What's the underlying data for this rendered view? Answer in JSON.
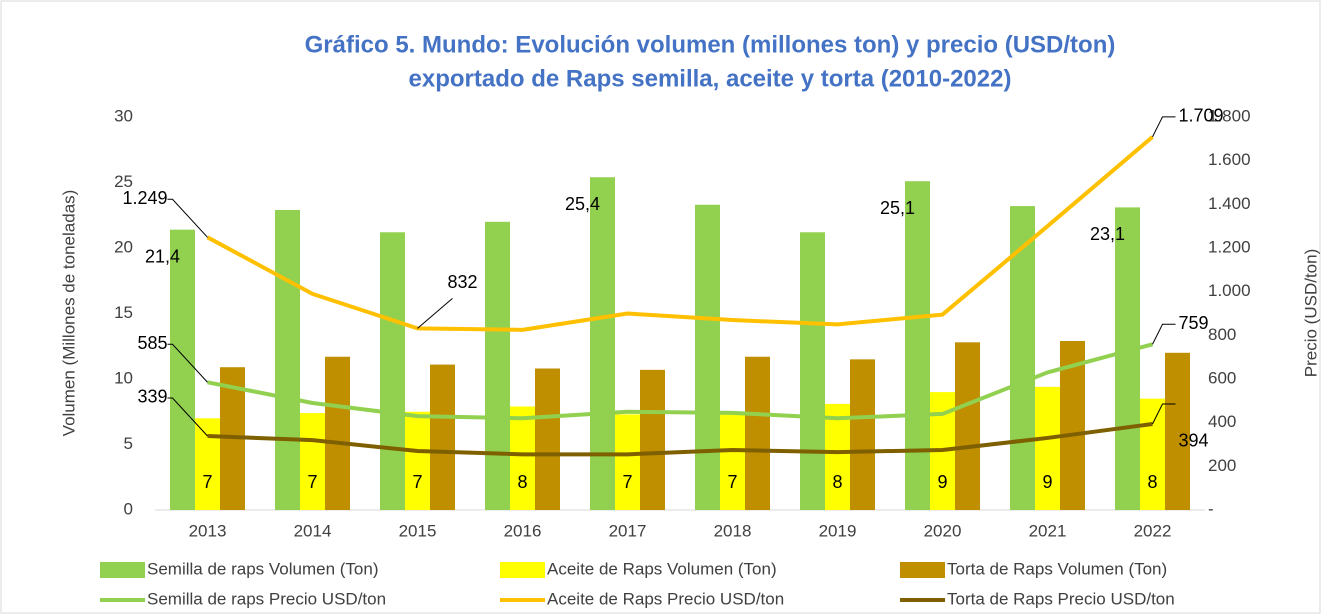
{
  "chart_data": {
    "type": "bar",
    "title": [
      "Gráfico 5. Mundo: Evolución volumen (millones ton) y precio (USD/ton)",
      "exportado de Raps semilla, aceite y torta (2010-2022)"
    ],
    "ylabel": "Volumen (Millones de toneladas)",
    "y2label": "Precio (USD/ton)",
    "categories": [
      "2013",
      "2014",
      "2015",
      "2016",
      "2017",
      "2018",
      "2019",
      "2020",
      "2021",
      "2022"
    ],
    "ylim": [
      0,
      30
    ],
    "yticks": [
      0,
      5,
      10,
      15,
      20,
      25,
      30
    ],
    "y2lim": [
      0,
      1800
    ],
    "y2ticks": [
      {
        "value": 0,
        "label": "-"
      },
      200,
      400,
      600,
      800,
      {
        "value": 1000,
        "label": "1.000"
      },
      {
        "value": 1200,
        "label": "1.200"
      },
      {
        "value": 1400,
        "label": "1.400"
      },
      {
        "value": 1600,
        "label": "1.600"
      },
      {
        "value": 1800,
        "label": "1.800"
      }
    ],
    "legend": "bottom",
    "series": [
      {
        "name": "Semilla de raps Volumen (Ton)",
        "type": "bar",
        "color": "#92d050",
        "values": [
          21.4,
          22.9,
          21.2,
          22.0,
          25.4,
          23.3,
          21.2,
          25.1,
          23.2,
          23.1
        ],
        "value_labels": [
          "21,4",
          null,
          null,
          null,
          "25,4",
          null,
          null,
          "25,1",
          null,
          "23,1"
        ]
      },
      {
        "name": "Aceite de Raps Volumen (Ton)",
        "type": "bar",
        "color": "#ffff00",
        "values": [
          7.0,
          7.4,
          7.5,
          7.9,
          7.3,
          7.3,
          8.1,
          9.0,
          9.4,
          8.5
        ],
        "value_labels": [
          "7",
          "7",
          "7",
          "8",
          "7",
          "7",
          "8",
          "9",
          "9",
          "8"
        ]
      },
      {
        "name": "Torta de Raps Volumen (Ton)",
        "type": "bar",
        "color": "#bf8f00",
        "values": [
          10.9,
          11.7,
          11.1,
          10.8,
          10.7,
          11.7,
          11.5,
          12.8,
          12.9,
          12.0
        ]
      },
      {
        "name": "Semilla de raps Precio USD/ton",
        "type": "line",
        "axis": "y2",
        "color": "#92d050",
        "values": [
          585,
          490,
          430,
          420,
          450,
          445,
          420,
          440,
          630,
          759
        ],
        "value_labels": [
          "585",
          null,
          null,
          null,
          null,
          null,
          null,
          null,
          null,
          "759"
        ]
      },
      {
        "name": "Aceite de Raps Precio USD/ton",
        "type": "line",
        "axis": "y2",
        "color": "#ffc000",
        "values": [
          1249,
          990,
          832,
          825,
          900,
          870,
          850,
          895,
          1300,
          1709
        ],
        "value_labels": [
          "1.249",
          null,
          "832",
          null,
          null,
          null,
          null,
          null,
          null,
          "1.709"
        ]
      },
      {
        "name": "Torta de Raps Precio USD/ton",
        "type": "line",
        "axis": "y2",
        "color": "#7f6000",
        "values": [
          339,
          320,
          270,
          255,
          255,
          275,
          265,
          275,
          330,
          394
        ],
        "value_labels": [
          "339",
          null,
          null,
          null,
          null,
          null,
          null,
          null,
          null,
          "394"
        ]
      }
    ]
  }
}
